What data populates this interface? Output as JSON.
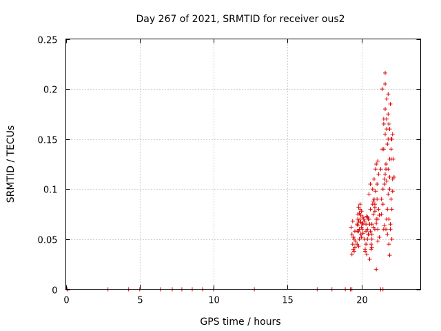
{
  "chart_data": {
    "type": "scatter",
    "title": "Day 267 of 2021, SRMTID for receiver ous2",
    "xlabel": "GPS time / hours",
    "ylabel": "SRMTID / TECUs",
    "xlim": [
      0,
      24
    ],
    "ylim": [
      0,
      0.25
    ],
    "xticks": [
      0,
      5,
      10,
      15,
      20
    ],
    "xtick_labels": [
      "0",
      "5",
      "10",
      "15",
      "20"
    ],
    "yticks": [
      0,
      0.05,
      0.1,
      0.15,
      0.2,
      0.25
    ],
    "ytick_labels": [
      "0",
      "0.05",
      "0.1",
      "0.15",
      "0.2",
      "0.25"
    ],
    "grid": true,
    "marker": "plus",
    "color": "#dd0000",
    "series": [
      {
        "name": "SRMTID",
        "x": [
          0.1,
          2.85,
          4.25,
          5.0,
          6.4,
          7.2,
          7.85,
          8.55,
          9.25,
          10.0,
          12.75,
          17.0,
          18.0,
          18.9,
          19.25,
          19.35,
          21.3,
          21.45,
          19.3,
          19.35,
          19.4,
          19.45,
          19.5,
          19.55,
          19.6,
          19.35,
          19.45,
          19.55,
          19.4,
          19.5,
          19.7,
          19.75,
          19.8,
          19.85,
          19.9,
          19.95,
          20.0,
          20.05,
          20.1,
          19.8,
          19.9,
          20.0,
          19.75,
          19.85,
          19.95,
          20.05,
          19.7,
          19.8,
          19.9,
          20.0,
          19.75,
          19.85,
          20.1,
          20.15,
          19.95,
          19.8,
          19.7,
          20.1,
          20.2,
          20.3,
          20.4,
          20.5,
          20.6,
          20.7,
          20.8,
          20.9,
          21.0,
          21.1,
          20.25,
          20.35,
          20.45,
          20.55,
          20.65,
          20.75,
          20.85,
          20.95,
          21.05,
          21.15,
          20.3,
          20.5,
          20.7,
          20.9,
          21.1,
          20.4,
          20.6,
          20.8,
          21.0,
          20.2,
          20.5,
          20.8,
          21.1,
          20.3,
          20.6,
          20.9,
          20.4,
          20.7,
          21.0,
          21.2,
          20.25,
          20.55,
          20.85,
          21.15,
          20.45,
          20.75,
          21.05,
          20.35,
          20.65,
          20.95,
          21.2,
          21.0,
          21.1,
          20.7,
          20.9,
          21.3,
          21.4,
          21.5,
          21.6,
          21.7,
          21.8,
          21.9,
          22.0,
          21.35,
          21.45,
          21.55,
          21.65,
          21.75,
          21.85,
          21.95,
          22.05,
          21.4,
          21.6,
          21.8,
          22.0,
          21.5,
          21.7,
          21.9,
          21.6,
          21.8,
          22.1,
          22.15,
          22.05,
          21.95,
          21.85,
          21.75,
          21.65,
          21.55,
          21.45,
          21.35,
          21.5,
          21.6,
          21.7,
          21.8,
          21.9,
          22.0,
          21.55,
          21.65,
          21.75,
          21.85,
          21.95,
          22.05,
          22.1,
          21.6,
          21.8,
          22.0,
          21.7,
          21.9,
          22.1,
          22.2,
          21.5,
          21.7,
          21.9
        ],
        "y": [
          0,
          0,
          0,
          0,
          0,
          0,
          0,
          0,
          0,
          0,
          0,
          0,
          0,
          0,
          0,
          0,
          0,
          0,
          0.062,
          0.055,
          0.045,
          0.04,
          0.05,
          0.058,
          0.048,
          0.035,
          0.052,
          0.042,
          0.068,
          0.038,
          0.065,
          0.075,
          0.082,
          0.06,
          0.07,
          0.055,
          0.078,
          0.066,
          0.072,
          0.058,
          0.085,
          0.062,
          0.07,
          0.05,
          0.074,
          0.06,
          0.045,
          0.068,
          0.08,
          0.052,
          0.064,
          0.076,
          0.056,
          0.07,
          0.067,
          0.043,
          0.058,
          0.065,
          0.05,
          0.045,
          0.06,
          0.07,
          0.08,
          0.065,
          0.075,
          0.085,
          0.07,
          0.06,
          0.04,
          0.035,
          0.055,
          0.03,
          0.045,
          0.1,
          0.11,
          0.12,
          0.09,
          0.08,
          0.065,
          0.055,
          0.05,
          0.06,
          0.07,
          0.072,
          0.058,
          0.062,
          0.125,
          0.068,
          0.095,
          0.088,
          0.128,
          0.058,
          0.105,
          0.078,
          0.05,
          0.042,
          0.066,
          0.052,
          0.038,
          0.065,
          0.09,
          0.115,
          0.07,
          0.085,
          0.105,
          0.073,
          0.04,
          0.098,
          0.074,
          0.02,
          0.048,
          0.055,
          0.082,
          0.12,
          0.14,
          0.165,
          0.18,
          0.19,
          0.175,
          0.16,
          0.13,
          0.09,
          0.1,
          0.11,
          0.12,
          0.08,
          0.07,
          0.06,
          0.05,
          0.2,
          0.205,
          0.15,
          0.14,
          0.17,
          0.16,
          0.13,
          0.115,
          0.095,
          0.11,
          0.13,
          0.15,
          0.185,
          0.165,
          0.145,
          0.125,
          0.105,
          0.085,
          0.075,
          0.14,
          0.155,
          0.17,
          0.12,
          0.1,
          0.09,
          0.064,
          0.06,
          0.055,
          0.045,
          0.065,
          0.08,
          0.098,
          0.216,
          0.195,
          0.15,
          0.108,
          0.112,
          0.155,
          0.112,
          0.06,
          0.07,
          0.034
        ]
      }
    ]
  }
}
